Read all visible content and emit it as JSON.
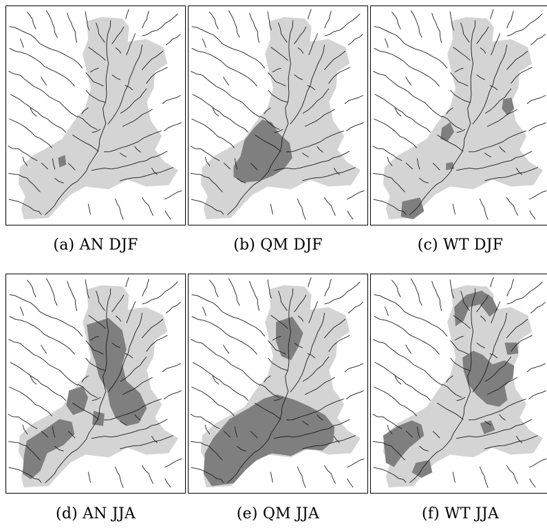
{
  "figure": {
    "colors": {
      "region_light": "#d4d4d4",
      "region_dark": "#7f7f7f",
      "river": "#1a1a1a",
      "border": "#000000",
      "background": "#ffffff"
    },
    "panels": [
      {
        "caption": "(a) AN DJF",
        "highlight": "an_djf"
      },
      {
        "caption": "(b) QM DJF",
        "highlight": "qm_djf"
      },
      {
        "caption": "(c) WT DJF",
        "highlight": "wt_djf"
      },
      {
        "caption": "(d) AN JJA",
        "highlight": "an_jja"
      },
      {
        "caption": "(e) QM JJA",
        "highlight": "qm_jja"
      },
      {
        "caption": "(f) WT JJA",
        "highlight": "wt_jja"
      }
    ]
  }
}
